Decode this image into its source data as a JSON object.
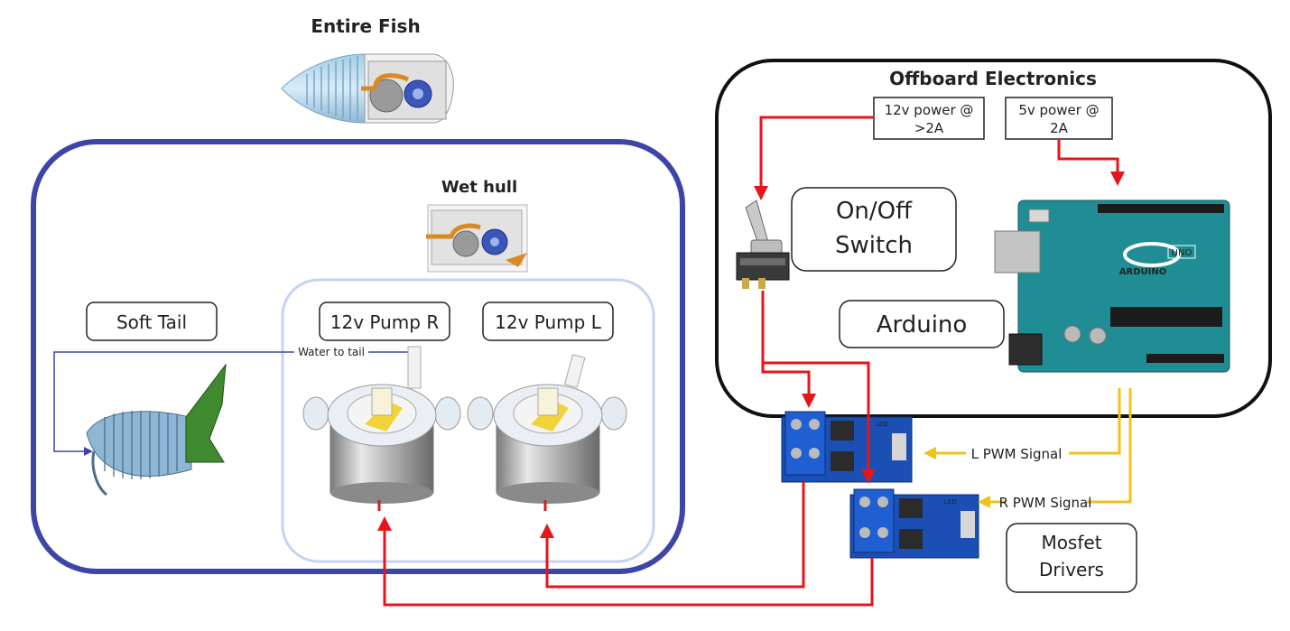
{
  "titles": {
    "entire_fish": "Entire Fish",
    "wet_hull": "Wet hull",
    "offboard": "Offboard Electronics"
  },
  "labels": {
    "soft_tail": "Soft Tail",
    "pump_r": "12v Pump R",
    "pump_l": "12v Pump L",
    "water_to_tail": "Water to tail",
    "power_12v_line1": "12v power @",
    "power_12v_line2": ">2A",
    "power_5v_line1": "5v power @",
    "power_5v_line2": "2A",
    "switch_line1": "On/Off",
    "switch_line2": "Switch",
    "arduino": "Arduino",
    "l_pwm": "L PWM Signal",
    "r_pwm": "R PWM Signal",
    "mosfet_line1": "Mosfet",
    "mosfet_line2": "Drivers"
  },
  "board": {
    "arduino_brand": "ARDUINO",
    "uno": "UNO",
    "mosfet_led": "LED"
  },
  "colors": {
    "fish_box": "#3d46a8",
    "wet_hull_box": "#c6d3f2",
    "wet_hull_title": "#c0ccf0",
    "power_wire": "#e8141b",
    "signal_wire": "#f2c21b",
    "water_line": "#3d46a8",
    "arduino_board": "#1f8d93",
    "mosfet_board": "#1b4fb3",
    "tail_green": "#3f8a2e"
  }
}
